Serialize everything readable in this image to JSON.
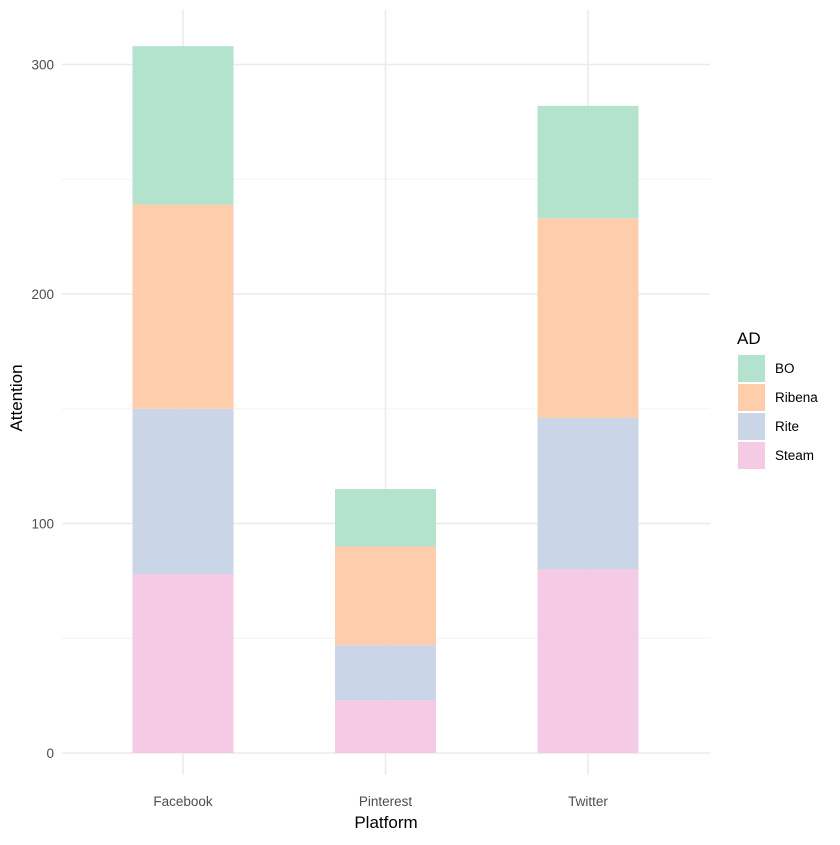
{
  "chart_data": {
    "type": "bar",
    "stacked": true,
    "title": "",
    "xlabel": "Platform",
    "ylabel": "Attention",
    "categories": [
      "Facebook",
      "Pinterest",
      "Twitter"
    ],
    "ylim": [
      0,
      320
    ],
    "yticks": [
      0,
      100,
      200,
      300
    ],
    "grid": true,
    "legend": {
      "title": "AD",
      "placement": "right"
    },
    "series": [
      {
        "name": "Steam",
        "color": "#F4CAE4",
        "values": [
          78,
          23,
          80
        ]
      },
      {
        "name": "Rite",
        "color": "#CBD5E8",
        "values": [
          72,
          24,
          66
        ]
      },
      {
        "name": "Ribena",
        "color": "#FDCDAC",
        "values": [
          89,
          43,
          87
        ]
      },
      {
        "name": "BO",
        "color": "#B3E2CD",
        "values": [
          69,
          25,
          49
        ]
      }
    ],
    "legend_order": [
      "BO",
      "Ribena",
      "Rite",
      "Steam"
    ]
  }
}
